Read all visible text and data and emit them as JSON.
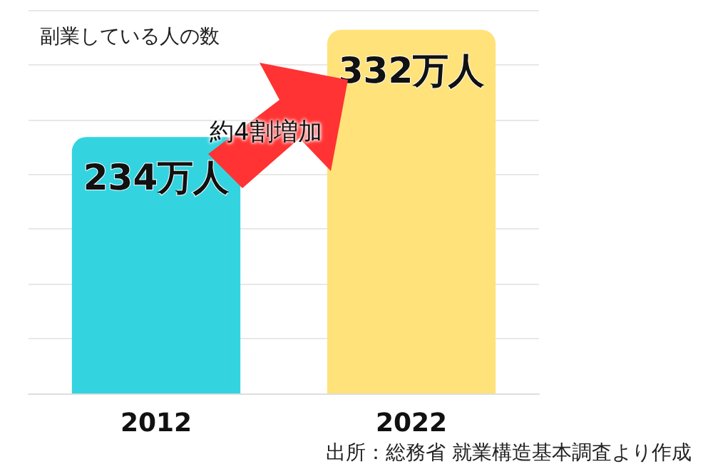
{
  "chart_data": {
    "type": "bar",
    "title": "副業している人の数",
    "categories": [
      "2012",
      "2022"
    ],
    "values": [
      234,
      332
    ],
    "colors": [
      "#33d4e0",
      "#ffe27a"
    ],
    "value_labels": [
      "234万人",
      "332万人"
    ],
    "ylim": [
      0,
      350
    ],
    "yticks": [
      {
        "value": 0,
        "label": null
      },
      {
        "value": 50,
        "label": null
      },
      {
        "value": 100,
        "label": null
      },
      {
        "value": 150,
        "label": null
      },
      {
        "value": 200,
        "label": null
      },
      {
        "value": 250,
        "label": null
      },
      {
        "value": 300,
        "label": null
      },
      {
        "value": 350,
        "label": null
      }
    ],
    "tick_labels": "x",
    "grid": "y",
    "annotations": [
      "約4割増加",
      "出所：総務省 就業構造基本調査より作成"
    ]
  }
}
